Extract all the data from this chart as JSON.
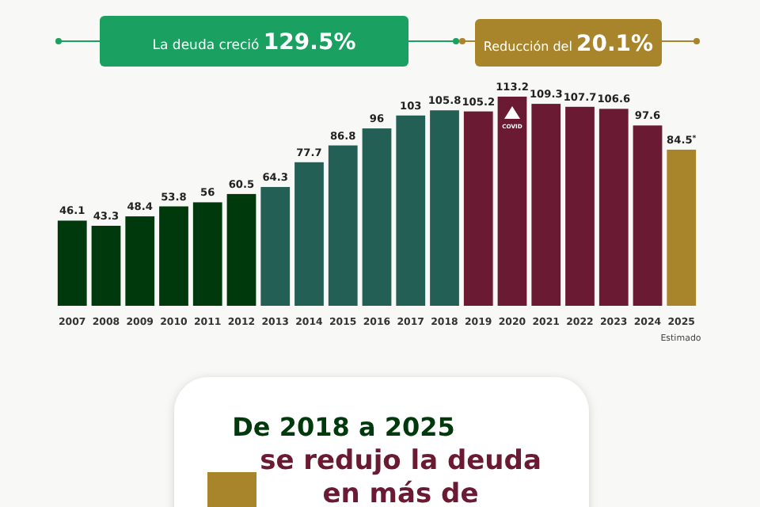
{
  "chart_data": {
    "type": "bar",
    "categories": [
      "2007",
      "2008",
      "2009",
      "2010",
      "2011",
      "2012",
      "2013",
      "2014",
      "2015",
      "2016",
      "2017",
      "2018",
      "2019",
      "2020",
      "2021",
      "2022",
      "2023",
      "2024",
      "2025"
    ],
    "values": [
      46.1,
      43.3,
      48.4,
      53.8,
      56,
      60.5,
      64.3,
      77.7,
      86.8,
      96,
      103,
      105.8,
      105.2,
      113.2,
      109.3,
      107.7,
      106.6,
      97.6,
      84.5
    ],
    "value_labels": [
      "46.1",
      "43.3",
      "48.4",
      "53.8",
      "56",
      "60.5",
      "64.3",
      "77.7",
      "86.8",
      "96",
      "103",
      "105.8",
      "105.2",
      "113.2",
      "109.3",
      "107.7",
      "106.6",
      "97.6",
      "84.5$^{*}$"
    ],
    "colors": [
      "#003a0c",
      "#003a0c",
      "#003a0c",
      "#003a0c",
      "#003a0c",
      "#003a0c",
      "#235f55",
      "#235f55",
      "#235f55",
      "#235f55",
      "#235f55",
      "#235f55",
      "#6a1a33",
      "#6a1a33",
      "#6a1a33",
      "#6a1a33",
      "#6a1a33",
      "#6a1a33",
      "#a8842a"
    ],
    "annotations": [
      "La deuda creció 129.5%",
      "Reducción del 20.1%",
      "COVID",
      "Estimado",
      "De 2018 a 2025",
      "se redujo la deuda",
      "en más de"
    ]
  }
}
